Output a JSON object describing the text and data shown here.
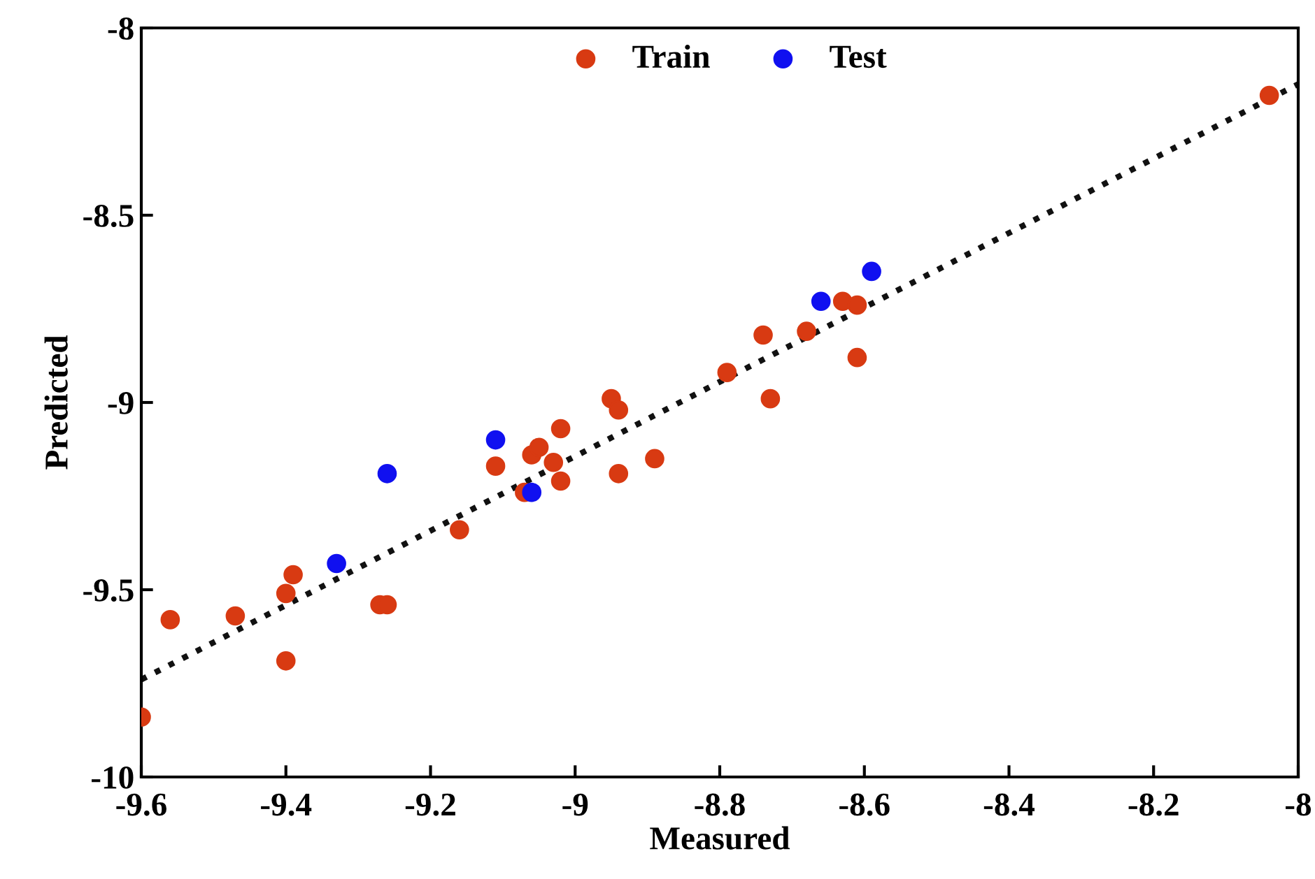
{
  "chart_data": {
    "type": "scatter",
    "xlabel": "Measured",
    "ylabel": "Predicted",
    "xlim": [
      -9.6,
      -8
    ],
    "ylim": [
      -10,
      -8
    ],
    "xticks": [
      -9.6,
      -9.4,
      -9.2,
      -9,
      -8.8,
      -8.6,
      -8.4,
      -8.2,
      -8
    ],
    "yticks": [
      -10,
      -9.5,
      -9,
      -8.5,
      -8
    ],
    "legend": "top",
    "grid": false,
    "marker": "circle",
    "series": [
      {
        "name": "Train",
        "color": "#d83a12",
        "x": [
          -8.04,
          -9.6,
          -9.56,
          -9.47,
          -9.4,
          -9.39,
          -9.4,
          -9.27,
          -9.26,
          -9.16,
          -9.11,
          -9.07,
          -9.06,
          -9.05,
          -9.03,
          -9.02,
          -9.02,
          -8.95,
          -8.94,
          -8.94,
          -8.89,
          -8.79,
          -8.74,
          -8.73,
          -8.68,
          -8.63,
          -8.61,
          -8.61
        ],
        "values": [
          -8.18,
          -9.84,
          -9.58,
          -9.57,
          -9.51,
          -9.46,
          -9.69,
          -9.54,
          -9.54,
          -9.34,
          -9.17,
          -9.24,
          -9.14,
          -9.12,
          -9.16,
          -9.07,
          -9.21,
          -8.99,
          -9.02,
          -9.19,
          -9.15,
          -8.92,
          -8.82,
          -8.99,
          -8.81,
          -8.73,
          -8.74,
          -8.88
        ]
      },
      {
        "name": "Test",
        "color": "#1010f0",
        "x": [
          -8.59,
          -8.66,
          -9.11,
          -9.06,
          -9.26,
          -9.33
        ],
        "values": [
          -8.65,
          -8.73,
          -9.1,
          -9.24,
          -9.19,
          -9.43
        ]
      },
      {
        "type": "line",
        "color": "#111111",
        "line_style": "dotted",
        "marker": "none",
        "x": [
          -9.6,
          -8
        ],
        "values": [
          -9.74,
          -8.15
        ]
      }
    ]
  }
}
